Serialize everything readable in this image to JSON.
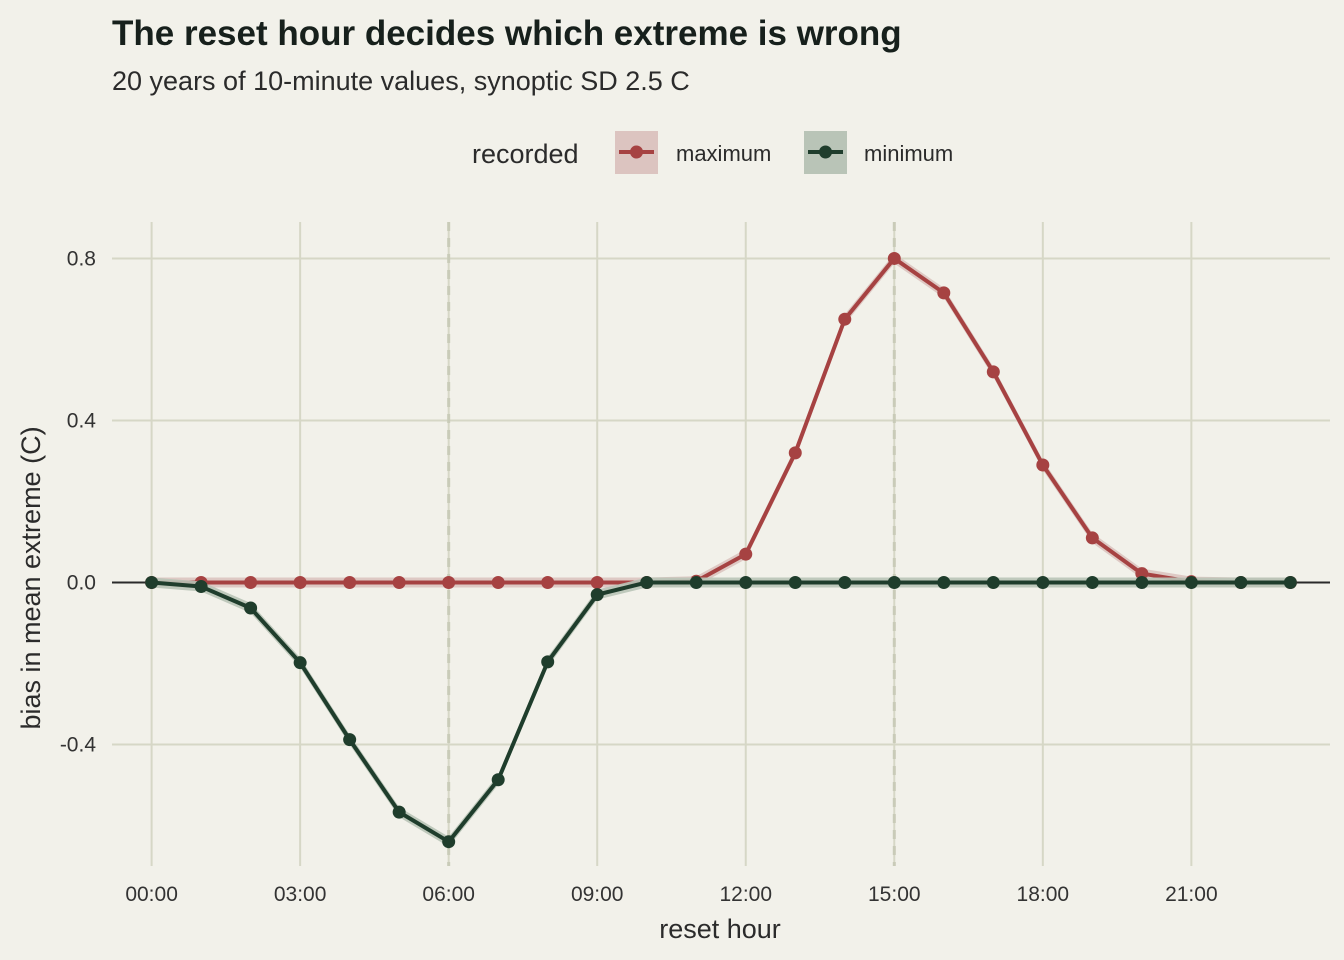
{
  "chart_data": {
    "type": "line",
    "title": "The reset hour decides which extreme is wrong",
    "subtitle": "20 years of 10-minute values, synoptic SD 2.5 C",
    "xlabel": "reset hour",
    "ylabel": "bias in mean extreme (C)",
    "legend_title": "recorded",
    "legend_position": "top",
    "grid": true,
    "x": [
      0,
      1,
      2,
      3,
      4,
      5,
      6,
      7,
      8,
      9,
      10,
      11,
      12,
      13,
      14,
      15,
      16,
      17,
      18,
      19,
      20,
      21,
      22,
      23
    ],
    "x_ticks": [
      0,
      3,
      6,
      9,
      12,
      15,
      18,
      21
    ],
    "x_tick_labels": [
      "00:00",
      "03:00",
      "06:00",
      "09:00",
      "12:00",
      "15:00",
      "18:00",
      "21:00"
    ],
    "xlim": [
      -0.8,
      23.8
    ],
    "y_ticks": [
      -0.4,
      0.0,
      0.4,
      0.8
    ],
    "y_tick_labels": [
      "-0.4",
      "0.0",
      "0.4",
      "0.8"
    ],
    "ylim": [
      -0.7,
      0.89
    ],
    "reference_lines_x": [
      6,
      15
    ],
    "zero_line": true,
    "series": [
      {
        "name": "maximum",
        "color": "#a64242",
        "band_color": "#dcc4c0",
        "values": [
          0.0,
          0.0,
          0.0,
          0.0,
          0.0,
          0.0,
          0.0,
          0.0,
          0.0,
          0.0,
          0.0,
          0.003,
          0.07,
          0.32,
          0.65,
          0.8,
          0.715,
          0.52,
          0.29,
          0.11,
          0.022,
          0.002,
          0.0,
          0.0
        ]
      },
      {
        "name": "minimum",
        "color": "#1f3d2c",
        "band_color": "#b9c4b7",
        "values": [
          0.0,
          -0.01,
          -0.063,
          -0.198,
          -0.388,
          -0.567,
          -0.64,
          -0.487,
          -0.196,
          -0.03,
          0.0,
          0.0,
          0.0,
          0.0,
          0.0,
          0.0,
          0.0,
          0.0,
          0.0,
          0.0,
          0.0,
          0.0,
          0.0,
          0.0
        ]
      }
    ]
  }
}
